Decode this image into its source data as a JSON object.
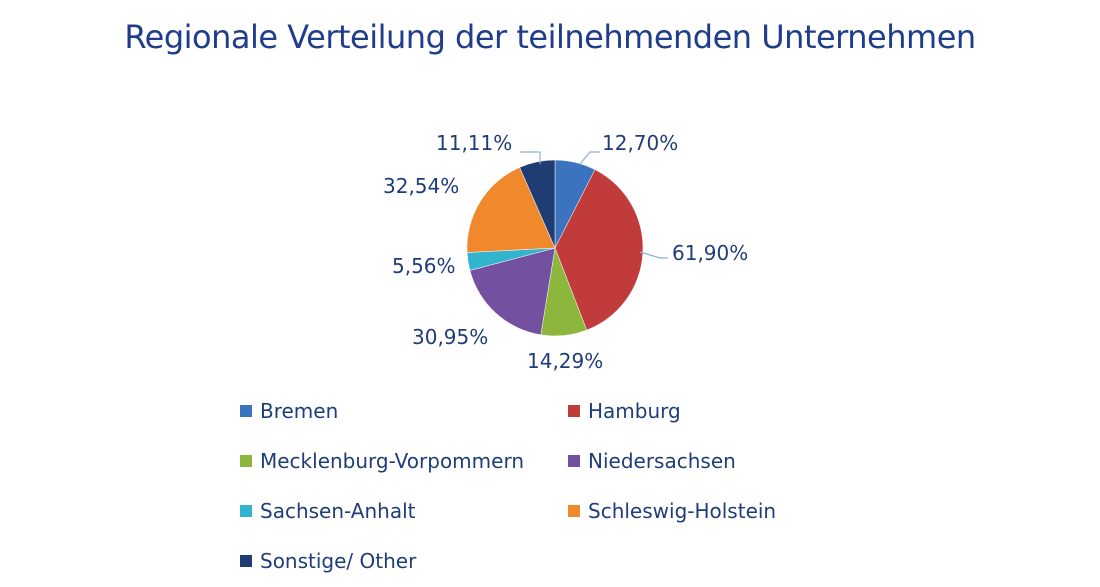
{
  "chart_data": {
    "type": "pie",
    "title": "Regionale Verteilung der teilnehmenden Unternehmen",
    "slices": [
      {
        "name": "Bremen",
        "value": 12.7,
        "label": "12,70%",
        "color": "#3b73be"
      },
      {
        "name": "Hamburg",
        "value": 61.9,
        "label": "61,90%",
        "color": "#c23b3b"
      },
      {
        "name": "Mecklenburg-Vorpommern",
        "value": 14.29,
        "label": "14,29%",
        "color": "#8db63c"
      },
      {
        "name": "Niedersachsen",
        "value": 30.95,
        "label": "30,95%",
        "color": "#7351a0"
      },
      {
        "name": "Sachsen-Anhalt",
        "value": 5.56,
        "label": "5,56%",
        "color": "#33b4ce"
      },
      {
        "name": "Schleswig-Holstein",
        "value": 32.54,
        "label": "32,54%",
        "color": "#f0892b"
      },
      {
        "name": "Sonstige/ Other",
        "value": 11.11,
        "label": "11,11%",
        "color": "#1f3d73"
      }
    ],
    "legend_position": "bottom"
  }
}
